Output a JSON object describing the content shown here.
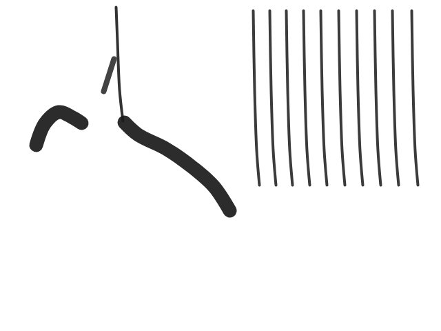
{
  "chart_data": {
    "type": "spectrogram",
    "tick_labels": false,
    "xlim": [
      0,
      640
    ],
    "ylim": [
      0,
      480
    ],
    "series": [
      {
        "color": "#1a1a1a",
        "line_style": "thick",
        "x": [
          52,
          65,
          85,
          105,
          118
        ],
        "values": [
          270,
          302,
          318,
          310,
          302
        ]
      },
      {
        "color": "#333333",
        "line_style": "medium",
        "x": [
          150,
          165
        ],
        "values": [
          348,
          395
        ]
      },
      {
        "color": "#222222",
        "line_style": "thin",
        "x": [
          168,
          170,
          173,
          178
        ],
        "values": [
          470,
          420,
          350,
          305
        ]
      },
      {
        "color": "#1a1a1a",
        "line_style": "thick",
        "x": [
          180,
          200,
          240,
          280,
          310,
          333
        ],
        "values": [
          303,
          285,
          265,
          237,
          210,
          175
        ]
      },
      {
        "color": "#2a2a2a",
        "line_style": "thin",
        "x": [
          367,
          369,
          372,
          376
        ],
        "values": [
          465,
          350,
          262,
          212
        ]
      },
      {
        "color": "#2a2a2a",
        "line_style": "thin",
        "x": [
          391,
          393,
          396,
          400
        ],
        "values": [
          465,
          350,
          262,
          212
        ]
      },
      {
        "color": "#2a2a2a",
        "line_style": "thin",
        "x": [
          415,
          417,
          420,
          424
        ],
        "values": [
          465,
          350,
          262,
          212
        ]
      },
      {
        "color": "#2a2a2a",
        "line_style": "thin",
        "x": [
          440,
          442,
          445,
          449
        ],
        "values": [
          465,
          350,
          262,
          212
        ]
      },
      {
        "color": "#2a2a2a",
        "line_style": "thin",
        "x": [
          465,
          467,
          470,
          474
        ],
        "values": [
          465,
          350,
          262,
          212
        ]
      },
      {
        "color": "#2a2a2a",
        "line_style": "thin",
        "x": [
          491,
          493,
          496,
          500
        ],
        "values": [
          465,
          350,
          262,
          212
        ]
      },
      {
        "color": "#2a2a2a",
        "line_style": "thin",
        "x": [
          517,
          519,
          522,
          526
        ],
        "values": [
          465,
          350,
          262,
          212
        ]
      },
      {
        "color": "#2a2a2a",
        "line_style": "thin",
        "x": [
          543,
          545,
          548,
          552
        ],
        "values": [
          465,
          350,
          262,
          212
        ]
      },
      {
        "color": "#2a2a2a",
        "line_style": "thin",
        "x": [
          569,
          571,
          574,
          578
        ],
        "values": [
          465,
          350,
          262,
          212
        ]
      },
      {
        "color": "#2a2a2a",
        "line_style": "thin",
        "x": [
          597,
          599,
          602,
          606
        ],
        "values": [
          465,
          350,
          262,
          212
        ]
      }
    ]
  }
}
